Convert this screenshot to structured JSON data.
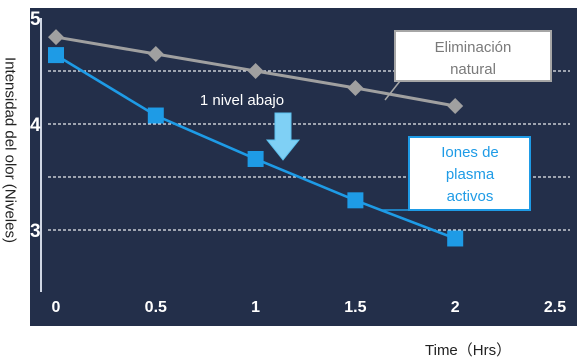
{
  "chart_data": {
    "type": "line",
    "x": [
      0,
      0.5,
      1,
      1.5,
      2
    ],
    "xlabel": "Time（Hrs）",
    "ylabel": "Intensidad del olor (Niveles)",
    "x_ticks": [
      "0",
      "0.5",
      "1",
      "1.5",
      "2",
      "2.5"
    ],
    "y_ticks": [
      "5",
      "4",
      "3"
    ],
    "xlim": [
      0,
      2.5
    ],
    "ylim": [
      2.6,
      5.1
    ],
    "grid": "horizontal-dashed",
    "series": [
      {
        "name": "Eliminación natural",
        "values": [
          4.82,
          4.66,
          4.5,
          4.34,
          4.17
        ],
        "color": "#a0a0a0",
        "marker": "diamond"
      },
      {
        "name": "Iones de plasma activos",
        "values": [
          4.65,
          4.08,
          3.67,
          3.28,
          2.92
        ],
        "color": "#1e9be6",
        "marker": "square"
      }
    ],
    "annotations": [
      {
        "text": "1 nivel abajo",
        "color": "#ffffff",
        "arrow": "down"
      }
    ]
  },
  "colors": {
    "plot_background": "#232f4a",
    "grid": "#ffffff",
    "natural_label_border": "#a6a6a6",
    "plasma_label_border": "#1e9be6"
  }
}
